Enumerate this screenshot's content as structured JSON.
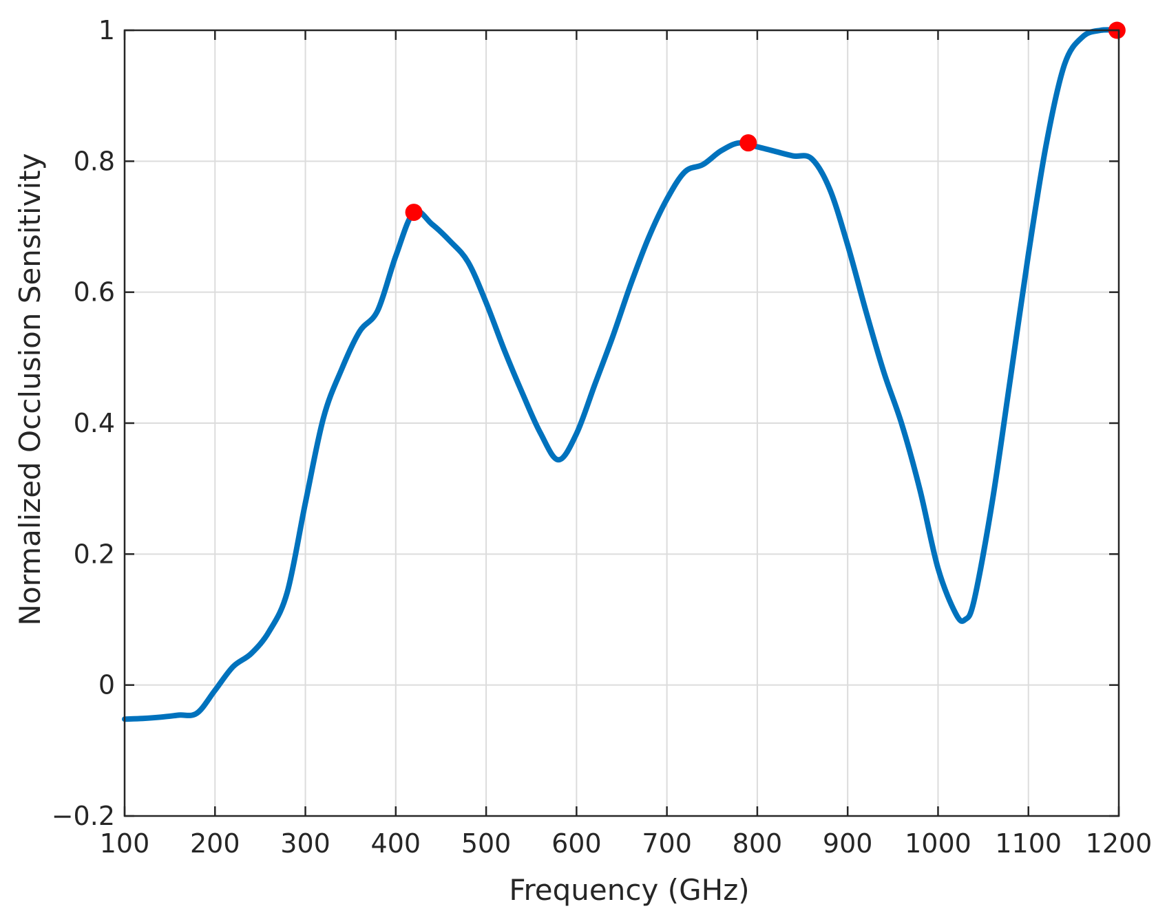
{
  "chart_data": {
    "type": "line",
    "title": "",
    "xlabel": "Frequency (GHz)",
    "ylabel": "Normalized Occlusion Sensitivity",
    "xlim": [
      100,
      1200
    ],
    "ylim": [
      -0.2,
      1
    ],
    "xticks": [
      100,
      200,
      300,
      400,
      500,
      600,
      700,
      800,
      900,
      1000,
      1100,
      1200
    ],
    "yticks": [
      -0.2,
      0,
      0.2,
      0.4,
      0.6,
      0.8,
      1
    ],
    "ytick_labels": [
      "−0.2",
      "0",
      "0.2",
      "0.4",
      "0.6",
      "0.8",
      "1"
    ],
    "grid": true,
    "series": [
      {
        "color": "#0072BD",
        "x": [
          100,
          120,
          140,
          160,
          180,
          200,
          220,
          240,
          260,
          280,
          300,
          320,
          340,
          360,
          380,
          400,
          420,
          440,
          460,
          480,
          500,
          520,
          540,
          560,
          580,
          600,
          620,
          640,
          660,
          680,
          700,
          720,
          740,
          760,
          780,
          800,
          820,
          840,
          860,
          880,
          900,
          920,
          940,
          960,
          980,
          1000,
          1020,
          1030,
          1040,
          1060,
          1080,
          1100,
          1120,
          1140,
          1160,
          1180,
          1200
        ],
        "y": [
          -0.052,
          -0.051,
          -0.049,
          -0.046,
          -0.043,
          -0.008,
          0.028,
          0.048,
          0.082,
          0.142,
          0.278,
          0.408,
          0.482,
          0.54,
          0.572,
          0.655,
          0.722,
          0.704,
          0.678,
          0.646,
          0.584,
          0.512,
          0.446,
          0.385,
          0.344,
          0.384,
          0.458,
          0.532,
          0.612,
          0.684,
          0.742,
          0.784,
          0.795,
          0.816,
          0.828,
          0.822,
          0.815,
          0.808,
          0.804,
          0.758,
          0.672,
          0.572,
          0.478,
          0.398,
          0.298,
          0.178,
          0.108,
          0.1,
          0.13,
          0.28,
          0.468,
          0.658,
          0.828,
          0.948,
          0.99,
          1.0,
          1.0
        ]
      }
    ],
    "markers": {
      "color": "#FF0000",
      "x": [
        420,
        790,
        1198
      ],
      "y": [
        0.722,
        0.828,
        1.0
      ]
    }
  }
}
